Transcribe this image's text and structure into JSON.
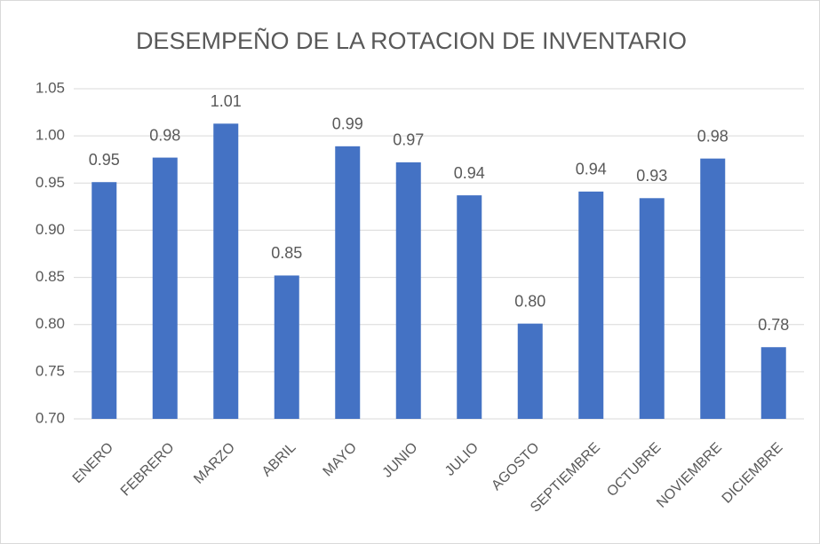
{
  "chart_data": {
    "type": "bar",
    "title": "DESEMPEÑO DE LA ROTACION DE INVENTARIO",
    "categories": [
      "ENERO",
      "FEBRERO",
      "MARZO",
      "ABRIL",
      "MAYO",
      "JUNIO",
      "JULIO",
      "AGOSTO",
      "SEPTIEMBRE",
      "OCTUBRE",
      "NOVIEMBRE",
      "DICIEMBRE"
    ],
    "values": [
      0.951,
      0.977,
      1.013,
      0.852,
      0.989,
      0.972,
      0.937,
      0.801,
      0.941,
      0.934,
      0.976,
      0.776
    ],
    "value_labels": [
      "0.95",
      "0.98",
      "1.01",
      "0.85",
      "0.99",
      "0.97",
      "0.94",
      "0.80",
      "0.94",
      "0.93",
      "0.98",
      "0.78"
    ],
    "color": "#4472c4",
    "ylim": [
      0.7,
      1.05
    ],
    "yticks": [
      {
        "value": 0.7,
        "label": "0.70"
      },
      {
        "value": 0.75,
        "label": "0.75"
      },
      {
        "value": 0.8,
        "label": "0.80"
      },
      {
        "value": 0.85,
        "label": "0.85"
      },
      {
        "value": 0.9,
        "label": "0.90"
      },
      {
        "value": 0.95,
        "label": "0.95"
      },
      {
        "value": 1.0,
        "label": "1.00"
      },
      {
        "value": 1.05,
        "label": "1.05"
      }
    ],
    "grid": true
  }
}
